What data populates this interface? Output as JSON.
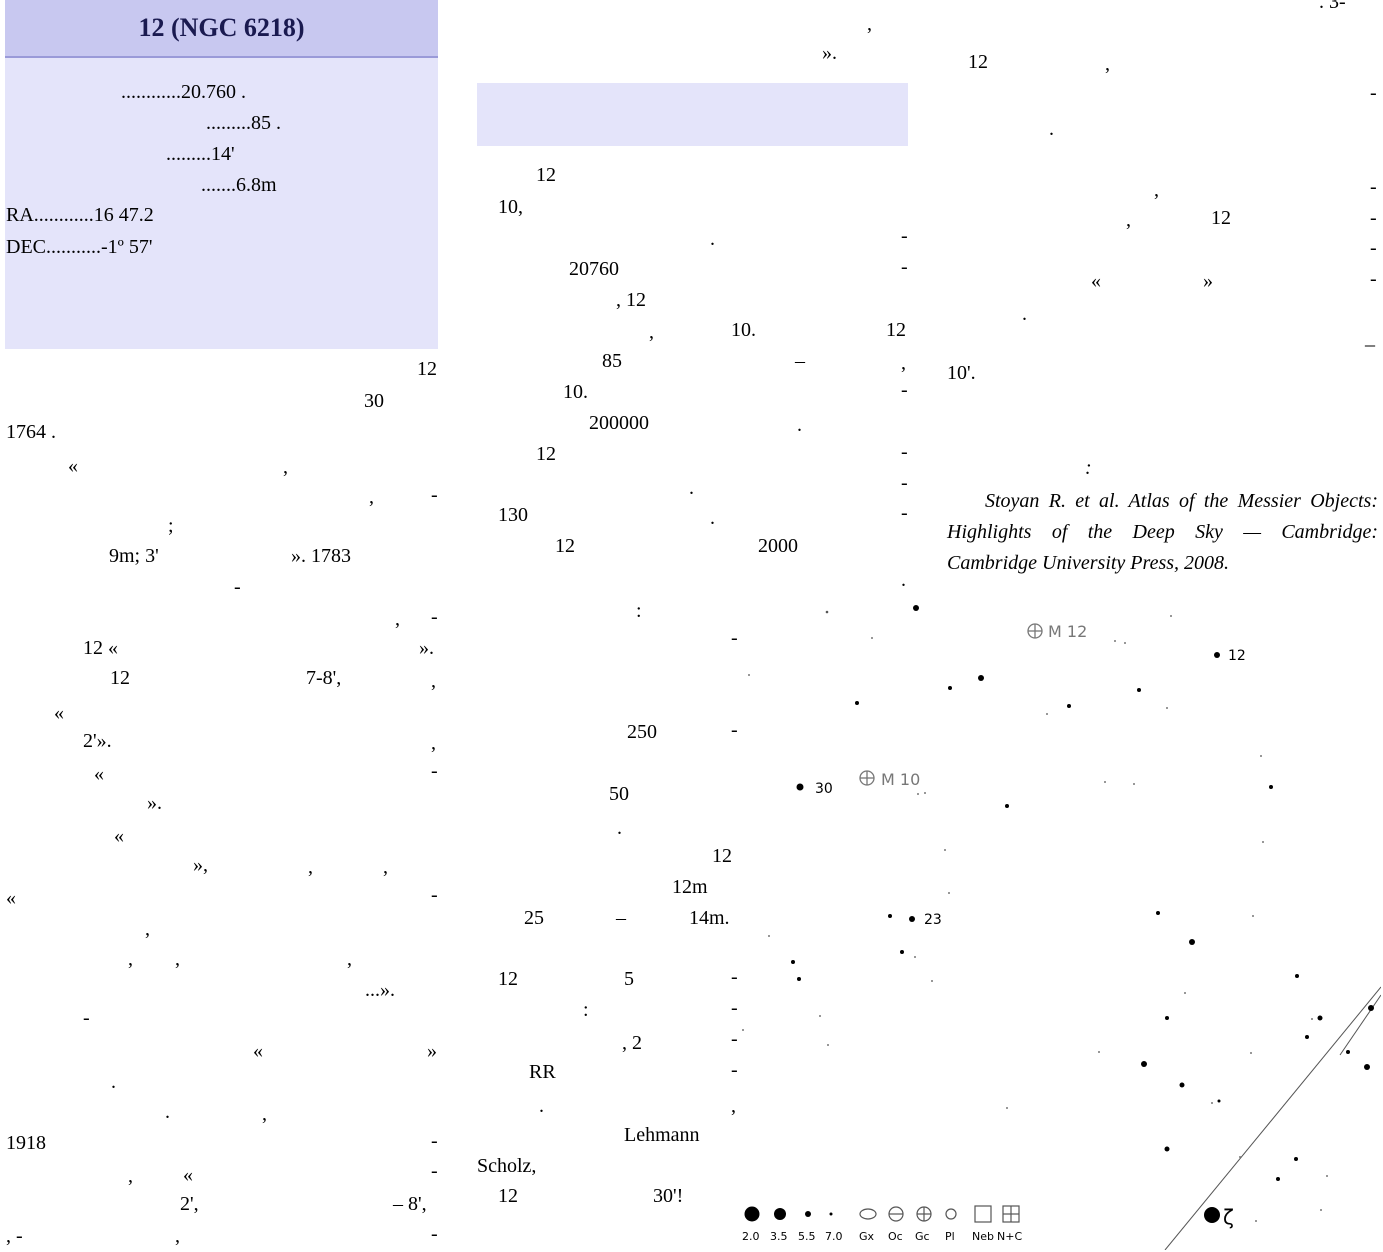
{
  "infobox": {
    "title": "12 (NGC 6218)",
    "distance": "............20.760    .",
    "diameter": ".........85     .",
    "size": ".........14'",
    "magnitude": ".......6.8m",
    "ra": "RA............16   47.2",
    "dec": "DEC...........-1º 57'"
  },
  "col1": {
    "lines": [
      "12",
      "30",
      "1764        .",
      "«",
      ",",
      ",",
      "-",
      ";",
      "9m; 3'",
      "».    1783",
      "-",
      ",",
      "-",
      "12  «",
      "».",
      "12",
      "7-8',",
      ",",
      "«",
      "2'».",
      ",",
      "«",
      "-",
      "».",
      "«",
      "»,",
      ",",
      ",",
      "«",
      "-",
      ",",
      ",",
      ",",
      ",",
      "...».",
      "-",
      "«",
      "»",
      ".",
      ".",
      ",",
      "1918",
      "-",
      "«",
      "-",
      ",",
      "2',",
      "– 8',",
      ",    -",
      ",",
      "-"
    ]
  },
  "col2": {
    "lines": [
      ",",
      "».",
      "12",
      "10,",
      ".",
      "-",
      "20760",
      "-",
      ",     12",
      ",",
      "10.",
      "12",
      "85",
      "–",
      ",",
      "10.",
      "-",
      "200000",
      ".",
      "12",
      "-",
      ".",
      "-",
      "130",
      ".",
      "-",
      "12",
      "2000",
      ".",
      ":",
      "-",
      "250",
      "-",
      "50",
      ".",
      "12",
      "12m",
      "25",
      "–",
      "14m.",
      "12",
      "5",
      "-",
      ":",
      "-",
      ",  2",
      "-",
      "RR",
      "-",
      ".",
      ",",
      "Lehmann",
      "Scholz,",
      "12",
      "30'!"
    ]
  },
  "col3": {
    "lines": [
      ".    3-",
      "12",
      ",",
      "-",
      ".",
      ",",
      "-",
      ",",
      "12",
      "-",
      "-",
      "«",
      "»",
      "-",
      ".",
      "_",
      "10'.",
      ":"
    ],
    "reference": "Stoyan R. et al. Atlas of the Messier Objects: Highlights of the Deep Sky — Cambridge: Cambridge University Press, 2008."
  },
  "starmap": {
    "object_labels": [
      "M 12",
      "M 10"
    ],
    "star_labels": [
      "12",
      "30",
      "23"
    ],
    "greek_label": "ζ",
    "legend": [
      "2.0",
      "3.5",
      "5.5",
      "7.0",
      "Gx",
      "Oc",
      "Gc",
      "Pl",
      "Neb",
      "N+C"
    ]
  }
}
